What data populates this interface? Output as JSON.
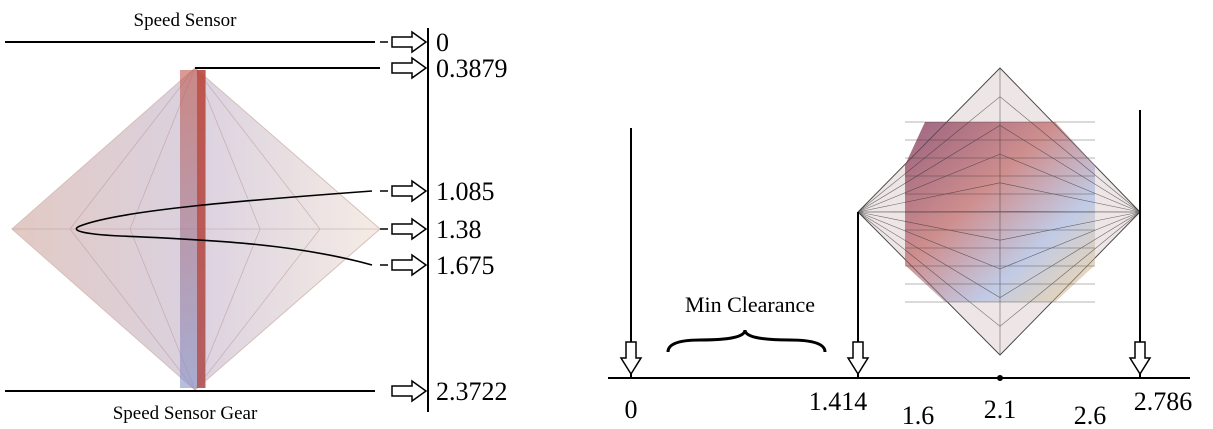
{
  "left": {
    "top_label": "Speed Sensor",
    "bottom_label": "Speed Sensor Gear",
    "scale_labels": [
      "0",
      "0.3879",
      "1.085",
      "1.38",
      "1.675",
      "2.3722"
    ]
  },
  "right": {
    "annotation": "Min Clearance",
    "axis_labels": [
      "0",
      "1.414",
      "1.6",
      "2.1",
      "2.6",
      "2.786"
    ]
  }
}
